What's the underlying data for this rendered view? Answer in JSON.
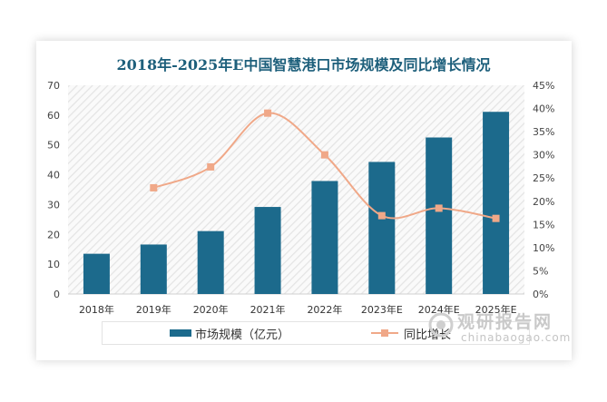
{
  "chart_data": {
    "type": "bar",
    "title": "2018年-2025年E中国智慧港口市场规模及同比增长情况",
    "categories": [
      "2018年",
      "2019年",
      "2020年",
      "2021年",
      "2022年",
      "2023年E",
      "2024年E",
      "2025年E"
    ],
    "series": [
      {
        "name": "市场规模（亿元）",
        "type": "bar",
        "axis": "left",
        "color": "#1c6a8c",
        "values": [
          13.5,
          16.6,
          21.1,
          29.2,
          37.9,
          44.3,
          52.5,
          61.1
        ]
      },
      {
        "name": "同比增长",
        "type": "line",
        "axis": "right",
        "color": "#f0a888",
        "values": [
          null,
          22.9,
          27.4,
          39.0,
          30.0,
          16.9,
          18.5,
          16.3
        ]
      }
    ],
    "y_left": {
      "min": 0,
      "max": 70,
      "step": 10,
      "ticks": [
        "0",
        "10",
        "20",
        "30",
        "40",
        "50",
        "60",
        "70"
      ]
    },
    "y_right": {
      "min": 0,
      "max": 45,
      "step": 5,
      "ticks": [
        "0%",
        "5%",
        "10%",
        "15%",
        "20%",
        "25%",
        "30%",
        "35%",
        "40%",
        "45%"
      ]
    },
    "legend": {
      "position": "bottom",
      "bar_label": "市场规模（亿元）",
      "line_label": "同比增长"
    },
    "grid": false
  },
  "watermark": {
    "text": "观研报告网",
    "url": "chinabaogao.com"
  }
}
